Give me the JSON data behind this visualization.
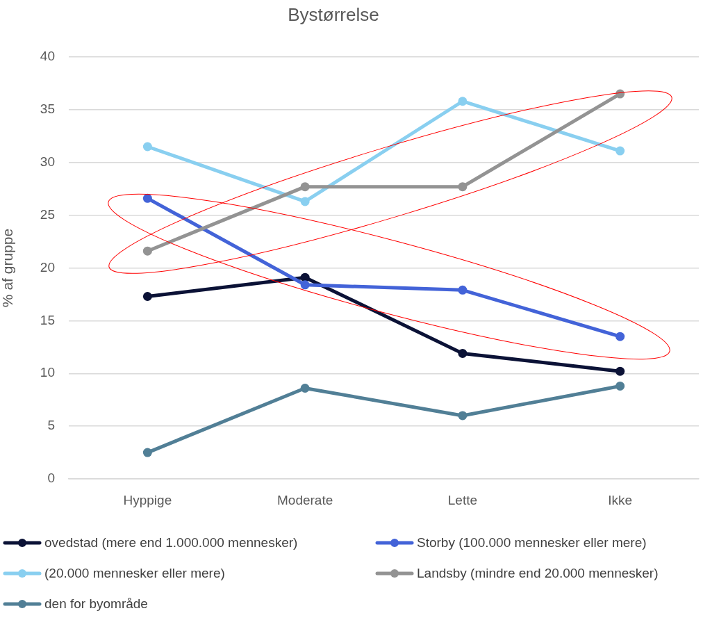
{
  "chart_data": {
    "type": "line",
    "title": "Bystørrelse",
    "ylabel": "% af gruppe",
    "categories": [
      "Hyppige",
      "Moderate",
      "Lette",
      "Ikke"
    ],
    "series": [
      {
        "name": "ovedstad (mere end 1.000.000 mennesker)",
        "color": "#0b1236",
        "values": [
          17.3,
          19.1,
          11.9,
          10.2
        ]
      },
      {
        "name": "Storby (100.000 mennesker eller mere)",
        "color": "#4363d8",
        "values": [
          26.6,
          18.4,
          17.9,
          13.5
        ]
      },
      {
        "name": "(20.000 mennesker eller mere)",
        "color": "#89cff0",
        "values": [
          31.5,
          26.3,
          35.8,
          31.1
        ]
      },
      {
        "name": "Landsby (mindre end 20.000 mennesker)",
        "color": "#939393",
        "values": [
          21.6,
          27.7,
          27.7,
          36.5
        ]
      },
      {
        "name": "den for byområde",
        "color": "#517f96",
        "values": [
          2.5,
          8.6,
          6.0,
          8.8
        ]
      }
    ],
    "ylim": [
      0,
      40
    ],
    "yticks": [
      0,
      5,
      10,
      15,
      20,
      25,
      30,
      35,
      40
    ],
    "grid": "y",
    "legend": "bottom",
    "marker": "circle",
    "line_style": "solid"
  }
}
